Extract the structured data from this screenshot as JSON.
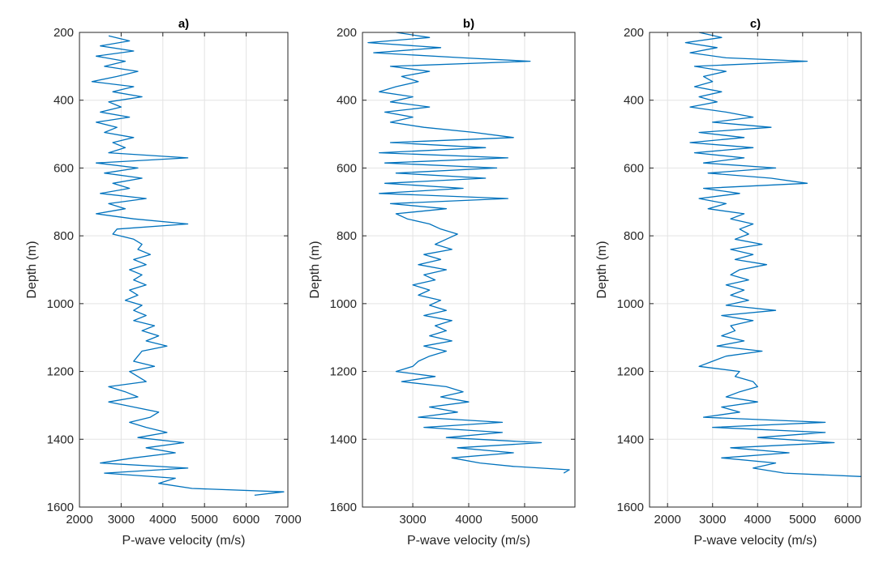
{
  "chart_data": [
    {
      "type": "line",
      "title": "a)",
      "xlabel": "P-wave velocity (m/s)",
      "ylabel": "Depth (m)",
      "xlim": [
        2000,
        7000
      ],
      "ylim": [
        200,
        1600
      ],
      "y_reversed": true,
      "grid": true,
      "xticks": [
        2000,
        3000,
        4000,
        5000,
        6000,
        7000
      ],
      "yticks": [
        200,
        400,
        600,
        800,
        1000,
        1200,
        1400,
        1600
      ],
      "series": [
        {
          "color": "#0072BD",
          "depth": [
            210,
            225,
            240,
            255,
            270,
            285,
            300,
            315,
            330,
            345,
            360,
            375,
            390,
            405,
            420,
            435,
            450,
            465,
            480,
            495,
            510,
            525,
            540,
            555,
            570,
            585,
            600,
            615,
            630,
            645,
            660,
            675,
            690,
            705,
            720,
            735,
            750,
            765,
            780,
            795,
            810,
            825,
            840,
            855,
            870,
            885,
            900,
            915,
            930,
            945,
            960,
            975,
            990,
            1005,
            1020,
            1035,
            1050,
            1065,
            1080,
            1095,
            1110,
            1125,
            1140,
            1155,
            1170,
            1185,
            1200,
            1215,
            1230,
            1245,
            1260,
            1275,
            1290,
            1305,
            1320,
            1335,
            1350,
            1365,
            1380,
            1395,
            1410,
            1425,
            1440,
            1455,
            1470,
            1485,
            1500,
            1515,
            1530,
            1545,
            1555,
            1565
          ],
          "velocity": [
            2700,
            3200,
            2500,
            3300,
            2400,
            3100,
            2600,
            3400,
            2900,
            2300,
            3300,
            2800,
            3500,
            2700,
            3000,
            2500,
            3200,
            2400,
            2900,
            2600,
            3300,
            2800,
            3100,
            2700,
            4600,
            2400,
            3400,
            2600,
            3500,
            2800,
            3200,
            2500,
            3600,
            2700,
            3100,
            2400,
            3300,
            4600,
            2900,
            2800,
            3300,
            3500,
            3400,
            3700,
            3300,
            3600,
            3200,
            3500,
            3300,
            3600,
            3200,
            3400,
            3100,
            3500,
            3300,
            3600,
            3300,
            3800,
            3500,
            3900,
            3600,
            4100,
            3500,
            3400,
            3300,
            3800,
            3200,
            3400,
            3600,
            2700,
            3100,
            3400,
            2700,
            3300,
            3900,
            3700,
            3200,
            3600,
            4100,
            3400,
            4500,
            3600,
            4300,
            3300,
            2500,
            4600,
            2600,
            4300,
            3900,
            4700,
            6900,
            6200
          ]
        }
      ]
    },
    {
      "type": "line",
      "title": "b)",
      "xlabel": "P-wave velocity (m/s)",
      "ylabel": "Depth (m)",
      "xlim": [
        2100,
        5900
      ],
      "ylim": [
        200,
        1600
      ],
      "y_reversed": true,
      "grid": true,
      "xticks": [
        3000,
        4000,
        5000
      ],
      "yticks": [
        200,
        400,
        600,
        800,
        1000,
        1200,
        1400,
        1600
      ],
      "series": [
        {
          "color": "#0072BD",
          "depth": [
            200,
            215,
            230,
            245,
            260,
            275,
            285,
            300,
            315,
            330,
            345,
            360,
            375,
            390,
            405,
            420,
            435,
            450,
            465,
            480,
            495,
            510,
            525,
            540,
            555,
            570,
            585,
            600,
            615,
            630,
            645,
            660,
            675,
            690,
            705,
            720,
            735,
            750,
            765,
            780,
            795,
            810,
            825,
            840,
            855,
            870,
            885,
            900,
            915,
            930,
            945,
            960,
            975,
            990,
            1005,
            1020,
            1035,
            1050,
            1065,
            1080,
            1095,
            1110,
            1125,
            1140,
            1155,
            1170,
            1185,
            1200,
            1215,
            1230,
            1245,
            1260,
            1275,
            1290,
            1305,
            1320,
            1335,
            1350,
            1365,
            1380,
            1395,
            1410,
            1425,
            1440,
            1455,
            1470,
            1480,
            1490,
            1500
          ],
          "velocity": [
            2700,
            3300,
            2200,
            3500,
            2300,
            3900,
            5100,
            2600,
            3300,
            2800,
            3100,
            2700,
            2400,
            3000,
            2600,
            3300,
            2500,
            3000,
            2600,
            3200,
            4100,
            4800,
            2600,
            4300,
            2400,
            4700,
            2500,
            4500,
            2700,
            4300,
            2500,
            3900,
            2400,
            4700,
            2600,
            3600,
            2700,
            2900,
            3300,
            3500,
            3800,
            3600,
            3400,
            3700,
            3200,
            3500,
            3100,
            3600,
            3200,
            3400,
            3000,
            3300,
            3100,
            3500,
            3300,
            3600,
            3200,
            3700,
            3400,
            3600,
            3300,
            3700,
            3200,
            3600,
            3300,
            3100,
            3000,
            2700,
            3400,
            2800,
            3600,
            3900,
            3500,
            4000,
            3300,
            3800,
            3100,
            4600,
            3200,
            4600,
            3600,
            5300,
            3800,
            4800,
            3700,
            4200,
            4800,
            5800,
            5700
          ]
        }
      ]
    },
    {
      "type": "line",
      "title": "c)",
      "xlabel": "P-wave velocity (m/s)",
      "ylabel": "Depth (m)",
      "xlim": [
        1600,
        6300
      ],
      "ylim": [
        200,
        1600
      ],
      "y_reversed": true,
      "grid": true,
      "xticks": [
        2000,
        3000,
        4000,
        5000,
        6000
      ],
      "yticks": [
        200,
        400,
        600,
        800,
        1000,
        1200,
        1400,
        1600
      ],
      "series": [
        {
          "color": "#0072BD",
          "depth": [
            200,
            215,
            230,
            245,
            260,
            275,
            285,
            300,
            315,
            330,
            345,
            360,
            375,
            390,
            405,
            420,
            435,
            450,
            465,
            480,
            495,
            510,
            525,
            540,
            555,
            570,
            585,
            600,
            615,
            630,
            645,
            660,
            675,
            690,
            705,
            720,
            735,
            750,
            765,
            780,
            795,
            810,
            825,
            840,
            855,
            870,
            885,
            900,
            915,
            930,
            945,
            960,
            975,
            990,
            1005,
            1020,
            1035,
            1050,
            1065,
            1080,
            1095,
            1110,
            1125,
            1140,
            1155,
            1170,
            1185,
            1200,
            1215,
            1230,
            1245,
            1260,
            1275,
            1290,
            1305,
            1320,
            1335,
            1350,
            1365,
            1380,
            1395,
            1410,
            1425,
            1440,
            1455,
            1470,
            1485,
            1500,
            1510
          ],
          "velocity": [
            2700,
            3200,
            2400,
            3100,
            2500,
            3300,
            5100,
            2600,
            3300,
            2800,
            3000,
            2600,
            3200,
            2700,
            3100,
            2500,
            3300,
            3900,
            3000,
            4300,
            2700,
            3700,
            2500,
            3900,
            2600,
            3700,
            2800,
            4400,
            2900,
            4300,
            5100,
            2800,
            3600,
            2700,
            3300,
            2900,
            3700,
            3400,
            3900,
            3600,
            3800,
            3500,
            4100,
            3400,
            3900,
            3500,
            4200,
            3600,
            3400,
            3800,
            3300,
            3700,
            3400,
            3800,
            3300,
            4400,
            3200,
            3900,
            3400,
            3500,
            3200,
            3700,
            3100,
            4100,
            3300,
            3000,
            2700,
            3600,
            3500,
            3900,
            4000,
            3600,
            3300,
            4000,
            3200,
            3600,
            2800,
            5500,
            3000,
            5500,
            4000,
            5700,
            3400,
            4700,
            3200,
            4400,
            3900,
            4600,
            6300
          ]
        }
      ]
    }
  ]
}
